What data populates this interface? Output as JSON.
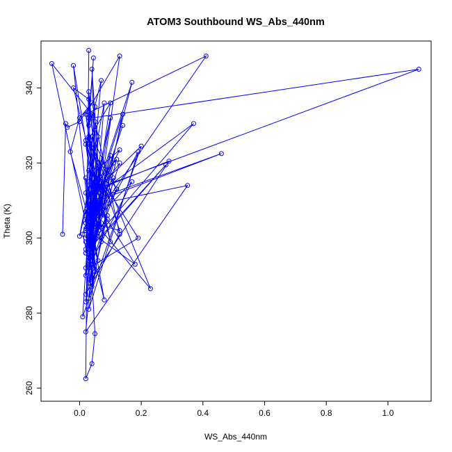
{
  "chart_data": {
    "type": "scatter",
    "mode": "lines+points",
    "title": "ATOM3 Southbound WS_Abs_440nm",
    "xlabel": "WS_Abs_440nm",
    "ylabel": "Theta (K)",
    "xlim": [
      -0.125,
      1.14
    ],
    "ylim": [
      256.5,
      352.5
    ],
    "xticks": [
      0.0,
      0.2,
      0.4,
      0.6,
      0.8,
      1.0
    ],
    "yticks": [
      260,
      280,
      300,
      320,
      340
    ],
    "xtick_labels": [
      "0.0",
      "0.2",
      "0.4",
      "0.6",
      "0.8",
      "1.0"
    ],
    "ytick_labels": [
      "260",
      "280",
      "300",
      "320",
      "340"
    ],
    "grid": false,
    "color": "#0000ff",
    "series": [
      {
        "x": [
          -0.055,
          -0.045,
          -0.04,
          0.0,
          0.04,
          0.0,
          -0.03,
          0.03,
          -0.02,
          0.05,
          0.02,
          0.1,
          0.06,
          0.02,
          0.13,
          0.05,
          0.01,
          0.2,
          0.03,
          0.0,
          0.08,
          0.04,
          0.09,
          0.06,
          0.17,
          0.01,
          0.03,
          0.12,
          0.04,
          0.02,
          0.28,
          0.07,
          0.03,
          0.19,
          0.05,
          0.02,
          0.35,
          0.06,
          0.04,
          0.11,
          0.02,
          0.08,
          0.03,
          0.13,
          0.04,
          0.05,
          0.02,
          0.18,
          0.05,
          0.03,
          0.1,
          0.02,
          0.06,
          0.04,
          0.23,
          0.03,
          0.08,
          0.02,
          0.07,
          0.03,
          0.14,
          0.02,
          0.05,
          0.04,
          0.09,
          0.03,
          0.06,
          0.02,
          0.12,
          0.03,
          0.07,
          0.02,
          0.04,
          0.05,
          0.11,
          0.04,
          0.03,
          0.09,
          0.02,
          0.06,
          0.04,
          0.13,
          0.03,
          0.05,
          0.02,
          0.08,
          0.04,
          0.03,
          0.29,
          0.06,
          0.03,
          0.1,
          0.02,
          0.05,
          0.04,
          0.17,
          0.03,
          0.06,
          0.02,
          0.08,
          0.37,
          0.04,
          0.06,
          0.19,
          0.03,
          0.05,
          0.02,
          0.07,
          0.04,
          0.46,
          0.03,
          0.06,
          0.02,
          0.04,
          0.09,
          0.03,
          0.05,
          0.02,
          0.07,
          0.03,
          0.12,
          0.05,
          0.03,
          0.06,
          0.04,
          0.13,
          0.03,
          0.04,
          0.02,
          0.05,
          0.09,
          0.03,
          0.06,
          0.04,
          0.14,
          0.02,
          0.05,
          0.03,
          0.04,
          0.06,
          0.03,
          0.41,
          0.02,
          0.05,
          0.04,
          0.03,
          0.1,
          0.05,
          1.1,
          0.04,
          0.07,
          0.03,
          0.05,
          0.04,
          -0.09,
          0.02,
          0.03,
          0.045,
          0.03,
          0.05,
          0.02,
          0.06,
          0.03,
          0.04,
          0.13,
          0.02,
          0.07,
          0.04,
          0.05,
          0.03,
          -0.02,
          0.06,
          0.03,
          0.05,
          0.04,
          0.02,
          0.03
        ],
        "y": [
          301,
          330.5,
          329.5,
          331,
          336,
          332,
          323,
          305,
          346,
          311,
          326,
          299,
          315,
          285,
          301,
          331,
          279,
          324.5,
          311,
          300.5,
          336,
          295,
          318,
          306,
          341.5,
          301,
          294,
          313,
          327,
          296,
          319.5,
          300,
          281,
          323,
          302,
          275,
          314,
          309,
          287,
          316,
          304,
          283.5,
          307,
          323.5,
          317,
          291,
          302.5,
          293,
          310,
          297,
          322,
          296,
          314,
          305,
          286.5,
          327,
          312,
          290,
          320,
          303,
          330,
          300,
          318,
          293,
          306,
          284,
          308,
          299,
          313,
          325,
          303,
          307,
          289,
          311,
          320,
          296,
          318,
          312,
          292,
          320,
          304,
          302,
          326.5,
          308,
          283,
          312,
          302,
          288,
          320.5,
          313,
          297,
          336,
          325,
          308,
          294,
          315,
          303,
          309,
          297,
          313,
          330.5,
          299,
          317,
          300,
          292,
          315,
          306,
          304,
          310,
          322.5,
          309,
          294,
          312,
          296,
          318,
          307,
          291,
          316,
          299,
          292,
          321,
          314,
          297,
          303,
          310,
          320,
          295,
          312,
          302,
          307,
          305,
          299,
          327,
          295,
          333,
          302,
          309,
          315,
          298,
          310,
          303,
          348.5,
          333,
          315,
          308,
          299,
          332,
          313,
          345,
          332,
          342,
          305,
          328,
          333,
          346.5,
          304,
          332,
          348,
          330,
          335,
          302,
          313,
          339,
          296,
          348.5,
          333,
          307,
          345,
          322,
          337,
          340,
          313,
          303,
          274.5,
          266.5,
          262.5,
          350
        ]
      }
    ]
  }
}
